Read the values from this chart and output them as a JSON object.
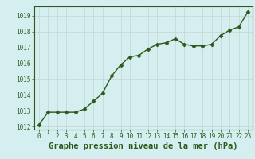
{
  "x": [
    0,
    1,
    2,
    3,
    4,
    5,
    6,
    7,
    8,
    9,
    10,
    11,
    12,
    13,
    14,
    15,
    16,
    17,
    18,
    19,
    20,
    21,
    22,
    23
  ],
  "y": [
    1012.1,
    1012.9,
    1012.9,
    1012.9,
    1012.9,
    1013.1,
    1013.6,
    1014.1,
    1015.2,
    1015.9,
    1016.4,
    1016.5,
    1016.9,
    1017.2,
    1017.3,
    1017.55,
    1017.2,
    1017.1,
    1017.1,
    1017.2,
    1017.75,
    1018.1,
    1018.3,
    1019.25
  ],
  "line_color": "#2d5a1b",
  "marker": "D",
  "marker_size": 2.5,
  "line_width": 1.0,
  "xlim": [
    -0.5,
    23.5
  ],
  "ylim": [
    1011.8,
    1019.6
  ],
  "yticks": [
    1012,
    1013,
    1014,
    1015,
    1016,
    1017,
    1018,
    1019
  ],
  "xticks": [
    0,
    1,
    2,
    3,
    4,
    5,
    6,
    7,
    8,
    9,
    10,
    11,
    12,
    13,
    14,
    15,
    16,
    17,
    18,
    19,
    20,
    21,
    22,
    23
  ],
  "xlabel": "Graphe pression niveau de la mer (hPa)",
  "background_color": "#d5eef0",
  "grid_color": "#c8d8d8",
  "tick_color": "#2d5a1b",
  "label_color": "#2d5a1b",
  "tick_fontsize": 5.5,
  "xlabel_fontsize": 7.5,
  "spine_color": "#2d5a1b"
}
